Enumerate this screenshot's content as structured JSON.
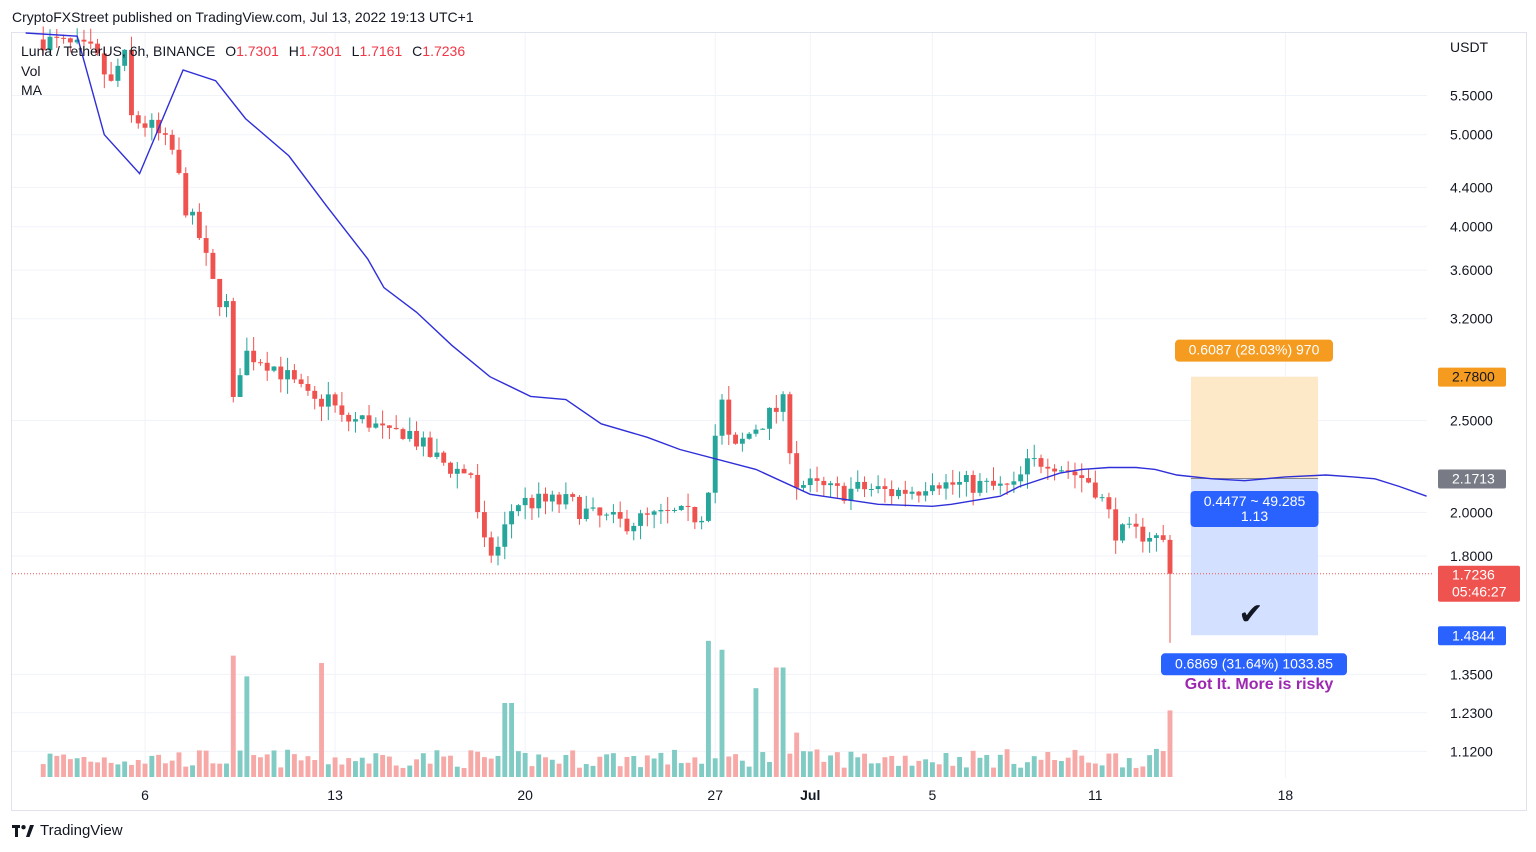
{
  "publisher_line": "CryptoFXStreet published on TradingView.com, Jul 13, 2022 19:13 UTC+1",
  "legend": {
    "symbol": "Luna / TetherUS, 6h, BINANCE",
    "o_label": "O",
    "o": "1.7301",
    "h_label": "H",
    "h": "1.7301",
    "l_label": "L",
    "l": "1.7161",
    "c_label": "C",
    "c": "1.7236",
    "vol": "Vol",
    "ma": "MA"
  },
  "branding": "TradingView",
  "colors": {
    "up": "#26a69a",
    "down": "#ef5350",
    "vol_up": "#80cbc4",
    "vol_down": "#f7a9a7",
    "ma": "#2f2fd9",
    "target_zone": "#fde9c8",
    "stop_zone": "#d4e0ff",
    "badge_orange": "#f59b1f",
    "badge_blue": "#2962ff",
    "price_red": "#ef5350",
    "annotation_purple": "#9c27b0"
  },
  "chart_data": {
    "type": "candlestick",
    "scale": "log",
    "y_unit_label": "USDT",
    "y_ticks": [
      "5.5000",
      "5.0000",
      "4.4000",
      "4.0000",
      "3.6000",
      "3.2000",
      "2.5000",
      "2.0000",
      "1.8000",
      "1.3500",
      "1.2300",
      "1.1200"
    ],
    "y_tick_values": [
      5.5,
      5.0,
      4.4,
      4.0,
      3.6,
      3.2,
      2.5,
      2.0,
      1.8,
      1.35,
      1.23,
      1.12
    ],
    "ylim": [
      1.05,
      6.4
    ],
    "x_tick_labels": [
      {
        "label": "6",
        "day": 6
      },
      {
        "label": "13",
        "day": 13
      },
      {
        "label": "20",
        "day": 20
      },
      {
        "label": "27",
        "day": 27
      },
      {
        "label": "Jul",
        "day": 30.5
      },
      {
        "label": "5",
        "day": 35
      },
      {
        "label": "11",
        "day": 41
      },
      {
        "label": "18",
        "day": 48
      }
    ],
    "x_range_days": [
      1.1,
      53.4
    ],
    "bar_hours": 6,
    "first_bar_day": 2.25,
    "key_points": [
      [
        2.2,
        6.3
      ],
      [
        3.2,
        6.2
      ],
      [
        4.1,
        6.1
      ],
      [
        4.8,
        5.6
      ],
      [
        5.2,
        6.2
      ],
      [
        5.5,
        5.2
      ],
      [
        6.2,
        5.1
      ],
      [
        7.0,
        4.8
      ],
      [
        7.5,
        4.2
      ],
      [
        8.0,
        3.9
      ],
      [
        8.6,
        3.4
      ],
      [
        9.0,
        3.3
      ],
      [
        9.2,
        2.55
      ],
      [
        9.6,
        2.95
      ],
      [
        10.4,
        2.9
      ],
      [
        11.1,
        2.8
      ],
      [
        12.2,
        2.6
      ],
      [
        12.8,
        2.65
      ],
      [
        13.2,
        2.5
      ],
      [
        14.2,
        2.5
      ],
      [
        15.0,
        2.4
      ],
      [
        15.6,
        2.45
      ],
      [
        16.5,
        2.3
      ],
      [
        17.4,
        2.22
      ],
      [
        18.0,
        2.2
      ],
      [
        18.4,
        1.85
      ],
      [
        18.9,
        1.8
      ],
      [
        19.6,
        2.05
      ],
      [
        20.8,
        2.05
      ],
      [
        21.6,
        2.05
      ],
      [
        22.5,
        1.98
      ],
      [
        23.5,
        1.95
      ],
      [
        24.5,
        1.97
      ],
      [
        25.5,
        1.99
      ],
      [
        26.2,
        1.98
      ],
      [
        26.6,
        2.0
      ],
      [
        27.2,
        2.65
      ],
      [
        27.6,
        2.3
      ],
      [
        28.4,
        2.45
      ],
      [
        29.5,
        2.6
      ],
      [
        30.0,
        2.15
      ],
      [
        31.5,
        2.1
      ],
      [
        32.5,
        2.12
      ],
      [
        33.5,
        2.1
      ],
      [
        34.5,
        2.12
      ],
      [
        35.0,
        2.18
      ],
      [
        35.5,
        2.14
      ],
      [
        36.5,
        2.14
      ],
      [
        37.5,
        2.12
      ],
      [
        38.0,
        2.12
      ],
      [
        38.5,
        2.24
      ],
      [
        39.2,
        2.28
      ],
      [
        40.2,
        2.2
      ],
      [
        40.9,
        2.15
      ],
      [
        41.4,
        2.02
      ],
      [
        41.8,
        1.9
      ],
      [
        42.4,
        1.9
      ],
      [
        43.0,
        1.9
      ],
      [
        43.5,
        1.86
      ],
      [
        43.7,
        1.85
      ],
      [
        43.9,
        1.73
      ]
    ],
    "ma_points": [
      [
        1.6,
        6.4
      ],
      [
        3.5,
        6.35
      ],
      [
        4.5,
        5.0
      ],
      [
        5.8,
        4.55
      ],
      [
        7.4,
        5.85
      ],
      [
        8.6,
        5.7
      ],
      [
        9.7,
        5.2
      ],
      [
        11.3,
        4.75
      ],
      [
        12.7,
        4.2
      ],
      [
        14.2,
        3.7
      ],
      [
        14.8,
        3.45
      ],
      [
        16.0,
        3.25
      ],
      [
        17.3,
        3.0
      ],
      [
        18.7,
        2.78
      ],
      [
        20.2,
        2.65
      ],
      [
        21.5,
        2.63
      ],
      [
        22.8,
        2.48
      ],
      [
        24.5,
        2.4
      ],
      [
        25.7,
        2.33
      ],
      [
        28.5,
        2.22
      ],
      [
        30.5,
        2.09
      ],
      [
        33.0,
        2.04
      ],
      [
        35.0,
        2.03
      ],
      [
        35.7,
        2.04
      ],
      [
        37.5,
        2.08
      ],
      [
        38.2,
        2.13
      ],
      [
        39.7,
        2.2
      ],
      [
        40.5,
        2.22
      ],
      [
        41.5,
        2.23
      ],
      [
        42.5,
        2.23
      ],
      [
        43.2,
        2.22
      ],
      [
        44.0,
        2.19
      ],
      [
        45.3,
        2.17
      ],
      [
        46.5,
        2.16
      ],
      [
        48.0,
        2.18
      ],
      [
        49.5,
        2.19
      ],
      [
        50.5,
        2.18
      ],
      [
        51.3,
        2.17
      ],
      [
        52.2,
        2.13
      ],
      [
        53.2,
        2.08
      ]
    ],
    "volume_spikes": [
      [
        9.2,
        0.82
      ],
      [
        9.7,
        0.68
      ],
      [
        12.4,
        0.77
      ],
      [
        19.4,
        0.5
      ],
      [
        26.8,
        0.92
      ],
      [
        27.2,
        0.86
      ],
      [
        28.5,
        0.6
      ],
      [
        29.4,
        0.74
      ],
      [
        30.0,
        0.3
      ],
      [
        43.9,
        0.45
      ]
    ],
    "last_price": "1.7236",
    "countdown": "05:46:27",
    "position_tool": {
      "type": "long",
      "target_price": 2.78,
      "entry_price": 2.1713,
      "stop_price": 1.4844,
      "target_label": "2.7800",
      "entry_label": "2.1713",
      "stop_label": "1.4844",
      "target_info": "0.6087 (28.03%) 970",
      "center_info_line1": "0.4477 ~ 49.285",
      "center_info_line2": "1.13",
      "stop_info": "0.6869 (31.64%) 1033.85",
      "annotation": "Got It. More is risky",
      "annotation_mark": "✔"
    }
  }
}
